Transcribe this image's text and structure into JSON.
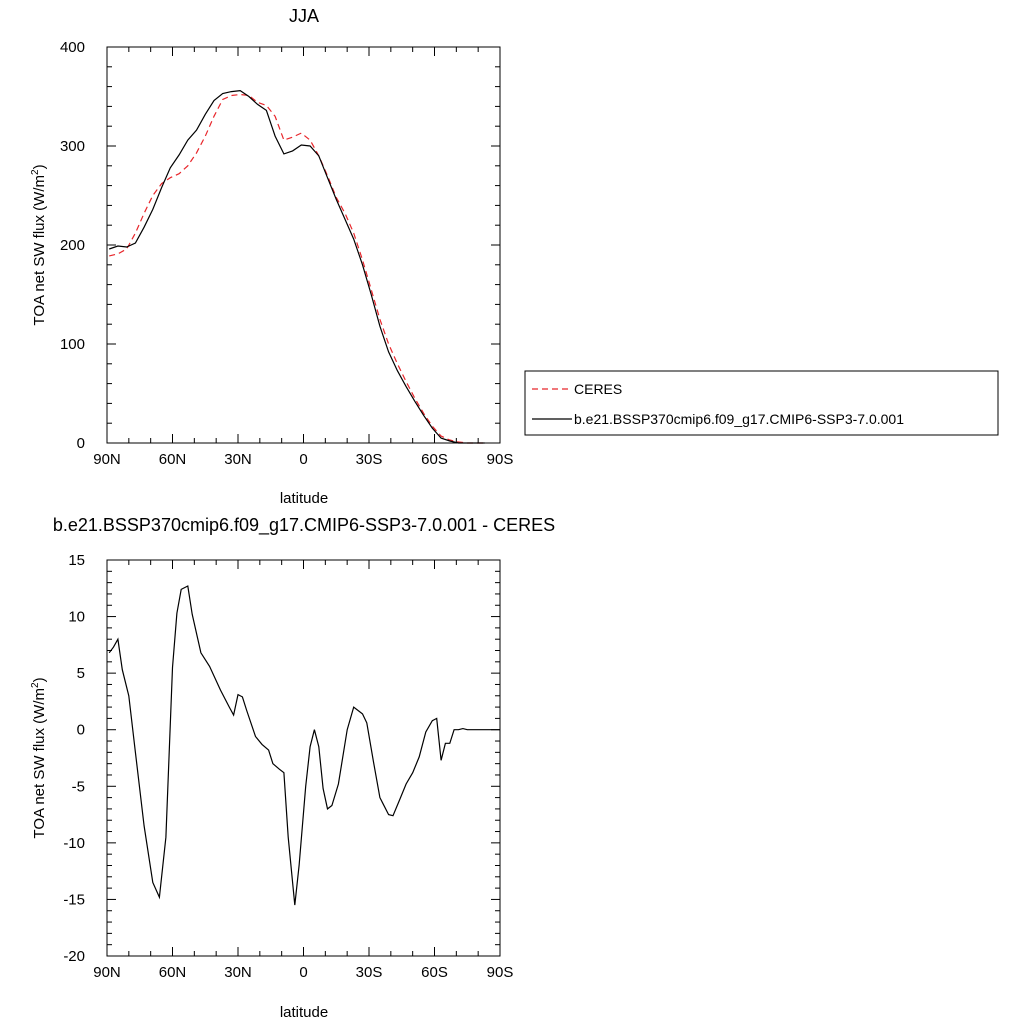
{
  "chart_data": [
    {
      "type": "line",
      "title": "JJA",
      "xlabel": "latitude",
      "ylabel": "TOA net SW flux (W/m",
      "ylabel_sup": "2",
      "ylabel_close": ")",
      "xlim": [
        90,
        -90
      ],
      "ylim": [
        0,
        400
      ],
      "xticks": [
        {
          "value": 90,
          "label": "90N"
        },
        {
          "value": 60,
          "label": "60N"
        },
        {
          "value": 30,
          "label": "30N"
        },
        {
          "value": 0,
          "label": "0"
        },
        {
          "value": -30,
          "label": "30S"
        },
        {
          "value": -60,
          "label": "60S"
        },
        {
          "value": -90,
          "label": "90S"
        }
      ],
      "yticks": [
        {
          "value": 0,
          "label": "0"
        },
        {
          "value": 100,
          "label": "100"
        },
        {
          "value": 200,
          "label": "200"
        },
        {
          "value": 300,
          "label": "300"
        },
        {
          "value": 400,
          "label": "400"
        }
      ],
      "legend_position": "right",
      "series": [
        {
          "name": "CERES",
          "color": "#e8262b",
          "dash": "dashed",
          "x": [
            89,
            85,
            81,
            77,
            73,
            69,
            65,
            61,
            57,
            53,
            49,
            45,
            41,
            37,
            33,
            29,
            25,
            21,
            17,
            13,
            9,
            5,
            1,
            -3,
            -7,
            -11,
            -15,
            -19,
            -23,
            -27,
            -31,
            -35,
            -39,
            -43,
            -47,
            -51,
            -55,
            -59,
            -63,
            -67,
            -71,
            -75,
            -79,
            -83
          ],
          "y": [
            189,
            191,
            196,
            212,
            232,
            250,
            262,
            268,
            272,
            280,
            293,
            310,
            330,
            347,
            351,
            352,
            351,
            344,
            341,
            330,
            306,
            309,
            313,
            306,
            290,
            270,
            248,
            232,
            212,
            185,
            155,
            125,
            100,
            80,
            62,
            45,
            30,
            17,
            7,
            3,
            1,
            0,
            0,
            0
          ]
        },
        {
          "name": "b.e21.BSSP370cmip6.f09_g17.CMIP6-SSP3-7.0.001",
          "color": "#000000",
          "dash": "solid",
          "x": [
            89,
            85,
            81,
            77,
            73,
            69,
            65,
            61,
            57,
            53,
            49,
            45,
            41,
            37,
            33,
            29,
            25,
            21,
            17,
            13,
            9,
            5,
            1,
            -3,
            -7,
            -11,
            -15,
            -19,
            -23,
            -27,
            -31,
            -35,
            -39,
            -43,
            -47,
            -51,
            -55,
            -59,
            -63,
            -67,
            -71,
            -75,
            -79,
            -83
          ],
          "y": [
            196,
            199,
            198,
            202,
            218,
            236,
            258,
            278,
            291,
            306,
            316,
            332,
            346,
            353,
            355,
            356,
            350,
            342,
            336,
            310,
            292,
            295,
            301,
            300,
            290,
            268,
            246,
            226,
            206,
            180,
            150,
            118,
            92,
            73,
            57,
            42,
            28,
            15,
            5,
            2,
            0,
            0,
            0,
            0
          ]
        }
      ]
    },
    {
      "type": "line",
      "title": "b.e21.BSSP370cmip6.f09_g17.CMIP6-SSP3-7.0.001 - CERES",
      "xlabel": "latitude",
      "ylabel": "TOA net SW flux (W/m",
      "ylabel_sup": "2",
      "ylabel_close": ")",
      "xlim": [
        90,
        -90
      ],
      "ylim": [
        -20,
        15
      ],
      "xticks": [
        {
          "value": 90,
          "label": "90N"
        },
        {
          "value": 60,
          "label": "60N"
        },
        {
          "value": 30,
          "label": "30N"
        },
        {
          "value": 0,
          "label": "0"
        },
        {
          "value": -30,
          "label": "30S"
        },
        {
          "value": -60,
          "label": "60S"
        },
        {
          "value": -90,
          "label": "90S"
        }
      ],
      "yticks": [
        {
          "value": -20,
          "label": "-20"
        },
        {
          "value": -15,
          "label": "-15"
        },
        {
          "value": -10,
          "label": "-10"
        },
        {
          "value": -5,
          "label": "-5"
        },
        {
          "value": 0,
          "label": "0"
        },
        {
          "value": 5,
          "label": "5"
        },
        {
          "value": 10,
          "label": "10"
        },
        {
          "value": 15,
          "label": "15"
        }
      ],
      "series": [
        {
          "color": "#000000",
          "dash": "solid",
          "x": [
            89,
            87,
            85,
            83,
            80,
            77,
            73,
            69,
            66,
            63,
            60,
            58,
            56,
            53,
            51,
            47,
            43,
            38,
            34,
            32,
            30,
            28,
            26,
            22,
            19,
            16,
            14,
            11,
            9,
            7,
            4,
            2,
            -1,
            -3,
            -5,
            -7,
            -9,
            -11,
            -13,
            -16,
            -20,
            -23,
            -27,
            -29,
            -32,
            -35,
            -39,
            -41,
            -44,
            -47,
            -50,
            -53,
            -56,
            -59,
            -61,
            -63,
            -65,
            -67,
            -69,
            -71,
            -73,
            -75,
            -77,
            -80,
            -83,
            -85,
            -88,
            -90
          ],
          "y": [
            6.8,
            7.3,
            8.0,
            5.3,
            3.0,
            -2.0,
            -8.5,
            -13.5,
            -14.8,
            -9.5,
            5.5,
            10.3,
            12.4,
            12.7,
            10.2,
            6.8,
            5.6,
            3.5,
            2.0,
            1.3,
            3.1,
            2.9,
            1.7,
            -0.6,
            -1.3,
            -1.8,
            -3.0,
            -3.5,
            -3.8,
            -9.5,
            -15.5,
            -12.0,
            -5.0,
            -1.5,
            0.0,
            -1.5,
            -5.2,
            -7.0,
            -6.7,
            -4.8,
            0.0,
            2.0,
            1.4,
            0.6,
            -2.8,
            -6.0,
            -7.5,
            -7.6,
            -6.2,
            -4.8,
            -3.8,
            -2.4,
            -0.2,
            0.8,
            1.0,
            -2.7,
            -1.2,
            -1.2,
            0.0,
            0.0,
            0.1,
            0.0,
            0.0,
            0.0,
            0.0,
            0.0,
            0.0,
            0.0
          ]
        }
      ]
    }
  ]
}
